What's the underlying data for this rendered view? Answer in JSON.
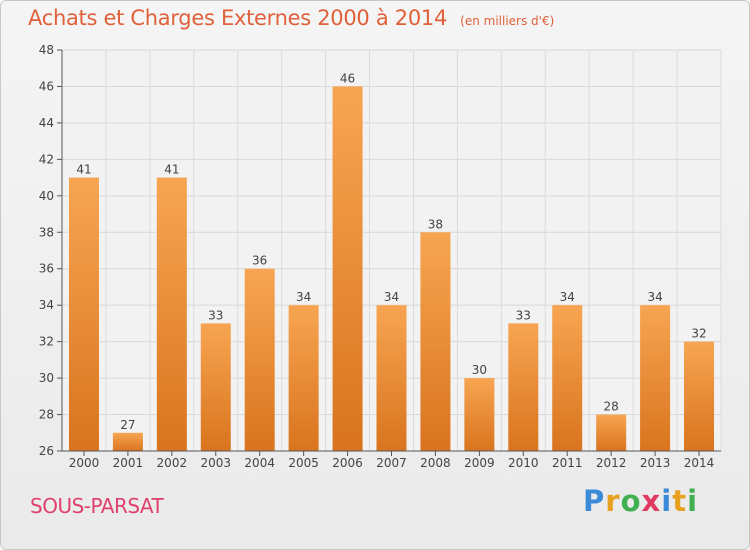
{
  "header": {
    "title": "Achats et Charges Externes 2000 à 2014",
    "subtitle": "(en milliers d'€)"
  },
  "footer": {
    "location": "SOUS-PARSAT",
    "brand": [
      "P",
      "r",
      "o",
      "x",
      "i",
      "t",
      "i"
    ],
    "brand_colors": [
      "#3a8ad8",
      "#e8a020",
      "#40b050",
      "#e03a60",
      "#3a8ad8",
      "#e8a020",
      "#40b050"
    ]
  },
  "colors": {
    "bar_light": "#f7a552",
    "bar_dark": "#d9741e",
    "title": "#e0603a",
    "location": "#e0406e"
  },
  "chart_data": {
    "type": "bar",
    "categories": [
      "2000",
      "2001",
      "2002",
      "2003",
      "2004",
      "2005",
      "2006",
      "2007",
      "2008",
      "2009",
      "2010",
      "2011",
      "2012",
      "2013",
      "2014"
    ],
    "values": [
      41,
      27,
      41,
      33,
      36,
      34,
      46,
      34,
      38,
      30,
      33,
      34,
      28,
      34,
      32
    ],
    "title": "Achats et Charges Externes 2000 à 2014",
    "subtitle": "(en milliers d'€)",
    "xlabel": "",
    "ylabel": "",
    "ylim": [
      26,
      48
    ],
    "yticks": [
      26,
      28,
      30,
      32,
      34,
      36,
      38,
      40,
      42,
      44,
      46,
      48
    ],
    "grid": true,
    "legend": "none"
  }
}
